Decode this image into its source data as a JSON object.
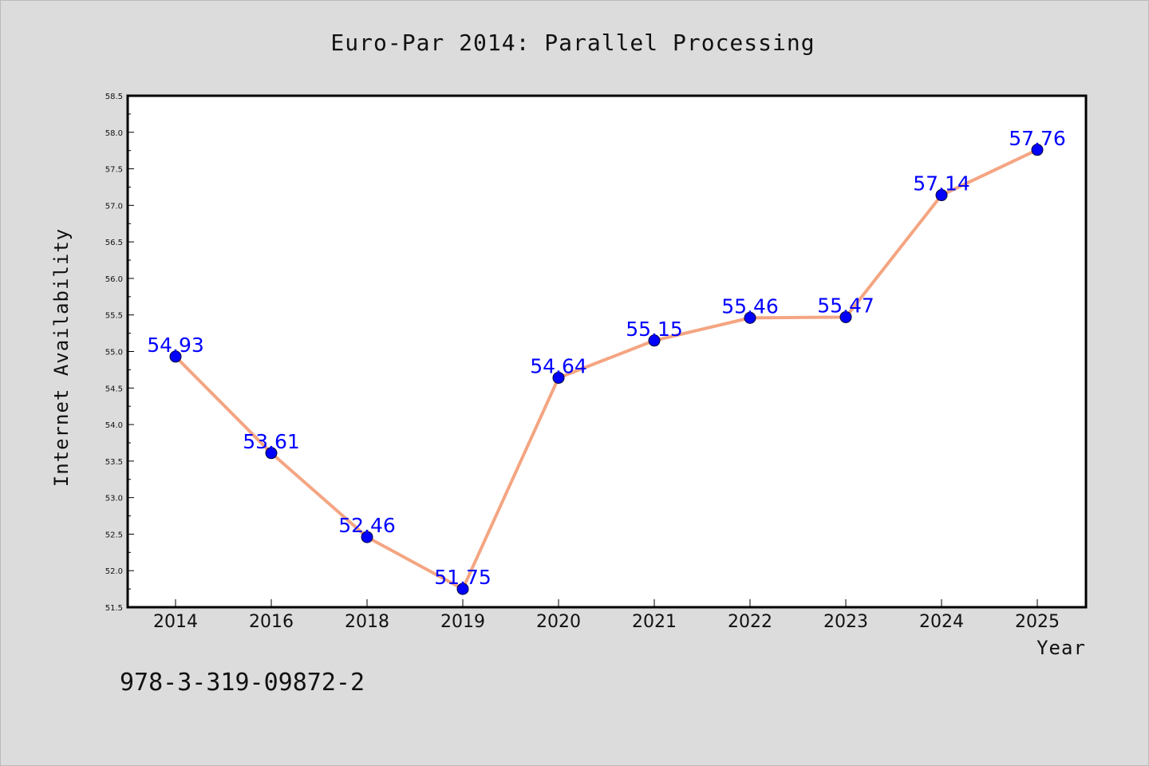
{
  "chart_data": {
    "type": "line",
    "title": "Euro-Par 2014: Parallel Processing",
    "xlabel": "Year",
    "ylabel": "Internet Availability",
    "categories": [
      "2014",
      "2016",
      "2018",
      "2019",
      "2020",
      "2021",
      "2022",
      "2023",
      "2024",
      "2025"
    ],
    "values": [
      54.93,
      53.61,
      52.46,
      51.75,
      54.64,
      55.15,
      55.46,
      55.47,
      57.14,
      57.76
    ],
    "data_labels": [
      "54.93",
      "53.61",
      "52.46",
      "51.75",
      "54.64",
      "55.15",
      "55.46",
      "55.47",
      "57.14",
      "57.76"
    ],
    "ylim": [
      51.5,
      58.5
    ],
    "yticks": [
      "51.5",
      "52.0",
      "52.5",
      "53.0",
      "53.5",
      "54.0",
      "54.5",
      "55.0",
      "55.5",
      "56.0",
      "56.5",
      "57.0",
      "57.5",
      "58.0",
      "58.5"
    ],
    "grid": false,
    "line_color": "#f4a582",
    "marker_color": "#0000ff",
    "label_color": "#0000ff"
  },
  "footer": {
    "text": "978-3-319-09872-2"
  }
}
